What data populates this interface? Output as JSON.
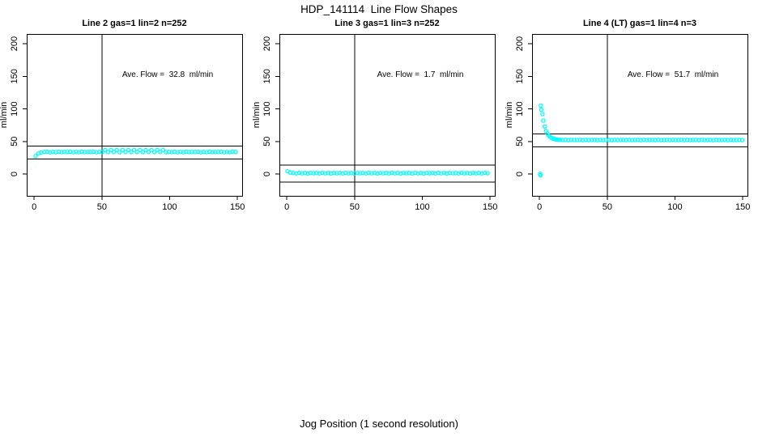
{
  "title": "HDP_141114  Line Flow Shapes",
  "xlabel": "Jog Position (1 second resolution)",
  "colors": {
    "points": "#00ffff",
    "axis": "#000000",
    "background": "#ffffff"
  },
  "chart_data": [
    {
      "type": "scatter",
      "title": "Line 2 gas=1 lin=2 n=252",
      "annotation": "Ave. Flow =  32.8  ml/min",
      "ave_flow_ml_min": 32.8,
      "n": 252,
      "ylabel": "ml/min",
      "xticks": [
        0,
        50,
        100,
        150
      ],
      "yticks": [
        0,
        50,
        100,
        150,
        200
      ],
      "xlim": [
        -5.5,
        153.5
      ],
      "ylim": [
        -33.5,
        215
      ],
      "grid": false,
      "vline_x": 50,
      "hlines": [
        42.8,
        22.8
      ],
      "series": {
        "x_start": 1,
        "x_step": 2.14,
        "y": [
          27.5,
          31.5,
          33.2,
          33.8,
          34.1,
          33.5,
          34.0,
          33.6,
          34.2,
          33.7,
          33.9,
          33.8,
          34.1,
          33.5,
          34.0,
          33.6,
          34.2,
          33.7,
          33.9,
          33.8,
          34.1,
          33.5,
          34.0,
          33.6,
          36.8,
          33.7,
          36.9,
          33.8,
          36.8,
          33.6,
          36.9,
          33.9,
          36.8,
          33.7,
          36.9,
          33.8,
          36.8,
          33.6,
          36.9,
          33.9,
          36.8,
          33.7,
          36.9,
          33.8,
          36.8,
          33.6,
          34.0,
          33.8,
          34.1,
          33.5,
          34.0,
          33.6,
          34.2,
          33.7,
          33.9,
          33.8,
          34.1,
          33.5,
          34.0,
          33.6,
          34.2,
          33.7,
          33.9,
          33.8,
          34.1,
          33.5,
          34.0,
          33.6,
          34.2,
          33.8
        ]
      }
    },
    {
      "type": "scatter",
      "title": "Line 3 gas=1 lin=3 n=252",
      "annotation": "Ave. Flow =  1.7  ml/min",
      "ave_flow_ml_min": 1.7,
      "n": 252,
      "ylabel": "ml/min",
      "xticks": [
        0,
        50,
        100,
        150
      ],
      "yticks": [
        0,
        50,
        100,
        150,
        200
      ],
      "xlim": [
        -5.5,
        153.5
      ],
      "ylim": [
        -33.5,
        215
      ],
      "grid": false,
      "vline_x": 50,
      "hlines": [
        13.5,
        -12.5
      ],
      "series": {
        "x_start": 0.5,
        "x_step": 2.14,
        "y": [
          4.2,
          2.0,
          1.5,
          1.0,
          1.8,
          1.2,
          1.6,
          0.9,
          1.7,
          1.3,
          1.5,
          1.0,
          1.8,
          1.2,
          1.6,
          0.9,
          1.7,
          1.3,
          1.5,
          1.0,
          1.8,
          1.2,
          1.6,
          0.9,
          1.7,
          1.3,
          1.5,
          1.0,
          1.8,
          1.2,
          1.6,
          0.9,
          1.7,
          1.3,
          1.5,
          1.0,
          1.8,
          1.2,
          1.6,
          0.9,
          1.7,
          1.3,
          1.5,
          1.0,
          1.8,
          1.2,
          1.6,
          0.9,
          1.7,
          1.3,
          1.5,
          1.0,
          1.8,
          1.2,
          1.6,
          0.9,
          1.7,
          1.3,
          1.5,
          1.0,
          1.8,
          1.2,
          1.6,
          0.9,
          1.7,
          1.3,
          1.5,
          1.0,
          1.8,
          1.3
        ]
      }
    },
    {
      "type": "scatter",
      "title": "Line 4 (LT) gas=1 lin=4 n=3",
      "annotation": "Ave. Flow =  51.7  ml/min",
      "ave_flow_ml_min": 51.7,
      "n": 3,
      "ylabel": "ml/min",
      "xticks": [
        0,
        50,
        100,
        150
      ],
      "yticks": [
        0,
        50,
        100,
        150,
        200
      ],
      "xlim": [
        -5.5,
        153.5
      ],
      "ylim": [
        -33.5,
        215
      ],
      "grid": false,
      "vline_x": 50,
      "hlines": [
        61.7,
        41.7
      ],
      "points": [
        [
          0.5,
          0.3
        ],
        [
          0.8,
          -1.8
        ],
        [
          1,
          105
        ],
        [
          1.3,
          99
        ],
        [
          2.2,
          92
        ],
        [
          2.8,
          82
        ],
        [
          3.8,
          73
        ],
        [
          4.8,
          66
        ],
        [
          5.8,
          62
        ],
        [
          6.8,
          59
        ],
        [
          7.8,
          57
        ],
        [
          8.8,
          55.5
        ],
        [
          9.8,
          54.5
        ],
        [
          10.8,
          53.8
        ],
        [
          11.8,
          53.3
        ],
        [
          12.8,
          53.0
        ],
        [
          13.8,
          52.8
        ],
        [
          15,
          52.6
        ]
      ],
      "series": {
        "x_start": 17,
        "x_step": 2.14,
        "y": [
          52.2,
          52.4,
          52.0,
          52.3,
          52.1,
          52.2,
          52.4,
          52.0,
          52.3,
          52.1,
          52.2,
          52.4,
          52.0,
          52.3,
          52.1,
          52.2,
          52.4,
          52.0,
          52.3,
          52.1,
          52.2,
          52.4,
          52.0,
          52.3,
          52.1,
          52.2,
          52.4,
          52.0,
          52.3,
          52.1,
          52.2,
          52.4,
          52.0,
          52.3,
          52.1,
          52.2,
          52.4,
          52.0,
          52.3,
          52.1,
          52.2,
          52.4,
          52.0,
          52.3,
          52.1,
          52.2,
          52.4,
          52.0,
          52.3,
          52.1,
          52.2,
          52.4,
          52.0,
          52.3,
          52.1,
          52.2,
          52.4,
          52.0,
          52.3,
          52.1,
          52.2,
          52.4,
          52.0
        ]
      }
    }
  ]
}
